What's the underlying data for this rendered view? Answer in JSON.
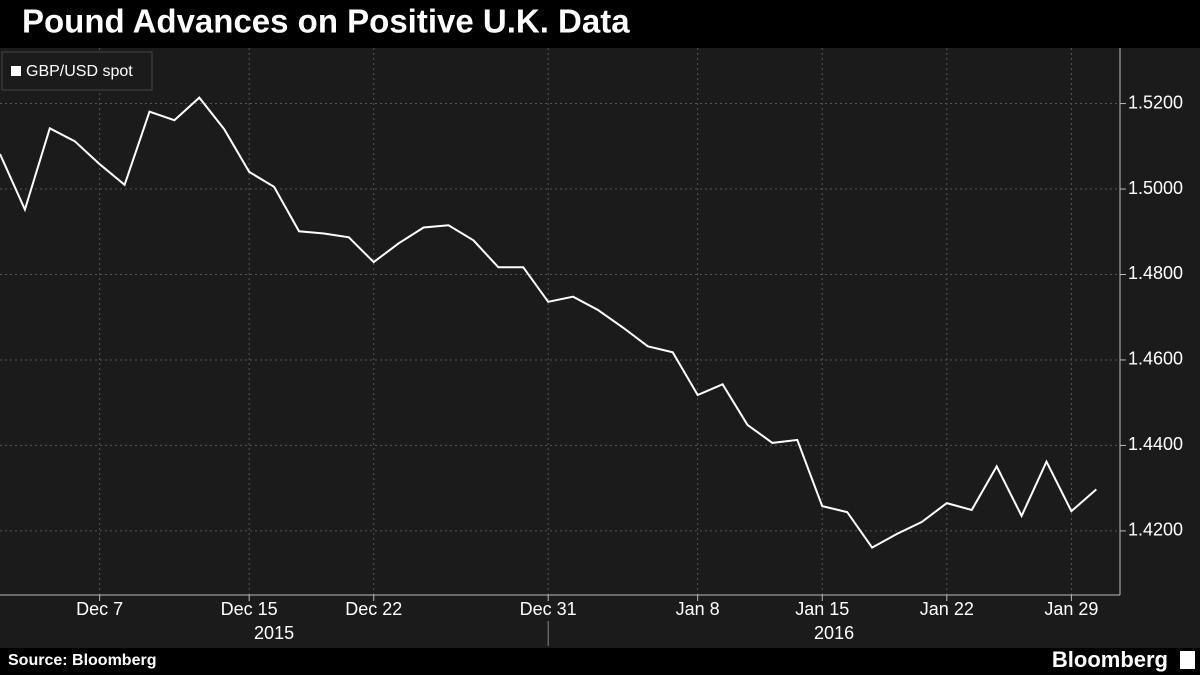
{
  "chart_data": {
    "type": "line",
    "title": "Pound Advances on Positive U.K. Data",
    "source": "Source: Bloomberg",
    "brand": "Bloomberg",
    "categories": [
      null,
      null,
      null,
      null,
      "Dec 7",
      null,
      null,
      null,
      null,
      null,
      "Dec 15",
      null,
      null,
      null,
      null,
      "Dec 22",
      null,
      null,
      null,
      null,
      null,
      null,
      "Dec 31",
      null,
      null,
      null,
      null,
      null,
      "Jan 8",
      null,
      null,
      null,
      null,
      "Jan 15",
      null,
      null,
      null,
      null,
      "Jan 22",
      null,
      null,
      null,
      null,
      "Jan 29",
      null
    ],
    "year_labels": [
      "2015",
      "2016"
    ],
    "series": [
      {
        "name": "GBP/USD spot",
        "color": "#ffffff",
        "values": [
          1.5082,
          1.4952,
          1.5142,
          1.5112,
          1.5058,
          1.501,
          1.5181,
          1.5161,
          1.5214,
          1.514,
          1.504,
          1.5005,
          1.4901,
          1.4896,
          1.4887,
          1.4829,
          1.4873,
          1.491,
          1.4915,
          1.488,
          1.4817,
          1.4817,
          1.4736,
          1.4748,
          1.4717,
          1.4676,
          1.4632,
          1.4618,
          1.4518,
          1.4543,
          1.4448,
          1.4406,
          1.4413,
          1.4258,
          1.4244,
          1.4161,
          1.4193,
          1.4221,
          1.4265,
          1.4249,
          1.4351,
          1.4235,
          1.4362,
          1.4246,
          1.4297
        ]
      }
    ],
    "ylim": [
      1.405,
      1.533
    ],
    "yticks": [
      {
        "value": 1.42,
        "label": "1.4200"
      },
      {
        "value": 1.44,
        "label": "1.4400"
      },
      {
        "value": 1.46,
        "label": "1.4600"
      },
      {
        "value": 1.48,
        "label": "1.4800"
      },
      {
        "value": 1.5,
        "label": "1.5000"
      },
      {
        "value": 1.52,
        "label": "1.5200"
      }
    ],
    "grid": true
  }
}
